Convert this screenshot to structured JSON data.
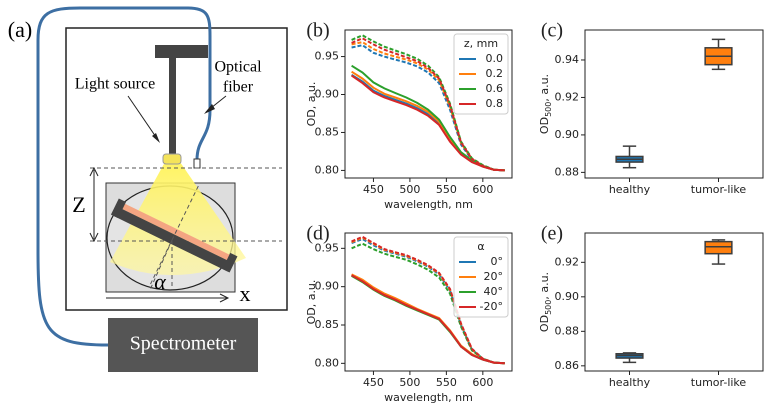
{
  "diagram": {
    "label": "(a)",
    "light_source": "Light source",
    "optical_fiber": [
      "Optical",
      "fiber"
    ],
    "z": "Z",
    "alpha": "α",
    "x": "x",
    "spectrometer": "Spectrometer"
  },
  "chart_data": [
    {
      "type": "line",
      "label": "(b)",
      "xlabel": "wavelength, nm",
      "ylabel": "OD, a.u.",
      "legend_title": "z, mm",
      "legend": "upper right",
      "x": [
        420,
        435,
        450,
        465,
        480,
        495,
        510,
        525,
        540,
        555,
        570,
        585,
        600,
        615,
        630
      ],
      "xlim": [
        411,
        640
      ],
      "xticks": [
        450,
        500,
        550,
        600
      ],
      "ylim": [
        0.79,
        0.985
      ],
      "yticks": [
        {
          "value": 0.8,
          "label": "0.80"
        },
        {
          "value": 0.85,
          "label": "0.85"
        },
        {
          "value": 0.9,
          "label": "0.90"
        },
        {
          "value": 0.95,
          "label": "0.95"
        }
      ],
      "series": [
        {
          "name": "0.0",
          "color": "#1f77b4",
          "values": [
            0.926,
            0.917,
            0.905,
            0.898,
            0.893,
            0.888,
            0.882,
            0.874,
            0.862,
            0.84,
            0.822,
            0.812,
            0.805,
            0.801,
            0.8
          ],
          "dashed_values": [
            0.962,
            0.965,
            0.955,
            0.95,
            0.946,
            0.942,
            0.937,
            0.929,
            0.915,
            0.88,
            0.834,
            0.814,
            0.806,
            0.801,
            0.8
          ]
        },
        {
          "name": "0.2",
          "color": "#ff7f0e",
          "values": [
            0.93,
            0.921,
            0.909,
            0.901,
            0.896,
            0.891,
            0.885,
            0.877,
            0.864,
            0.842,
            0.823,
            0.812,
            0.805,
            0.801,
            0.8
          ],
          "dashed_values": [
            0.966,
            0.969,
            0.96,
            0.954,
            0.95,
            0.946,
            0.941,
            0.933,
            0.919,
            0.884,
            0.836,
            0.815,
            0.806,
            0.801,
            0.8
          ]
        },
        {
          "name": "0.6",
          "color": "#2ca02c",
          "values": [
            0.938,
            0.929,
            0.916,
            0.908,
            0.902,
            0.896,
            0.889,
            0.88,
            0.867,
            0.844,
            0.824,
            0.813,
            0.806,
            0.801,
            0.8
          ],
          "dashed_values": [
            0.972,
            0.978,
            0.97,
            0.963,
            0.958,
            0.953,
            0.947,
            0.938,
            0.923,
            0.888,
            0.838,
            0.816,
            0.807,
            0.801,
            0.8
          ]
        },
        {
          "name": "0.8",
          "color": "#d62728",
          "values": [
            0.925,
            0.915,
            0.903,
            0.896,
            0.891,
            0.886,
            0.88,
            0.872,
            0.86,
            0.838,
            0.821,
            0.811,
            0.805,
            0.801,
            0.8
          ],
          "dashed_values": [
            0.968,
            0.974,
            0.966,
            0.959,
            0.954,
            0.949,
            0.944,
            0.935,
            0.921,
            0.886,
            0.837,
            0.815,
            0.806,
            0.801,
            0.8
          ]
        }
      ]
    },
    {
      "type": "box",
      "label": "(c)",
      "ylabel": [
        "OD",
        "500",
        ", a.u."
      ],
      "categories": [
        "healthy",
        "tumor-like"
      ],
      "colors": [
        "#1f77b4",
        "#ff7f0e"
      ],
      "ylim": [
        0.877,
        0.956
      ],
      "yticks": [
        {
          "value": 0.88,
          "label": "0.88"
        },
        {
          "value": 0.9,
          "label": "0.90"
        },
        {
          "value": 0.92,
          "label": "0.92"
        },
        {
          "value": 0.94,
          "label": "0.94"
        }
      ],
      "boxes": [
        {
          "low": 0.8825,
          "q1": 0.8855,
          "median": 0.887,
          "q3": 0.8885,
          "high": 0.894
        },
        {
          "low": 0.935,
          "q1": 0.9375,
          "median": 0.942,
          "q3": 0.9465,
          "high": 0.951
        }
      ]
    },
    {
      "type": "line",
      "label": "(d)",
      "xlabel": "wavelength, nm",
      "ylabel": "OD, a.u.",
      "legend_title": "α",
      "legend": "upper right",
      "x": [
        420,
        435,
        450,
        465,
        480,
        495,
        510,
        525,
        540,
        555,
        570,
        585,
        600,
        615,
        630
      ],
      "xlim": [
        411,
        640
      ],
      "xticks": [
        450,
        500,
        550,
        600
      ],
      "ylim": [
        0.79,
        0.97
      ],
      "yticks": [
        {
          "value": 0.8,
          "label": "0.80"
        },
        {
          "value": 0.85,
          "label": "0.85"
        },
        {
          "value": 0.9,
          "label": "0.90"
        },
        {
          "value": 0.95,
          "label": "0.95"
        }
      ],
      "series": [
        {
          "name": "0°",
          "color": "#1f77b4",
          "values": [
            0.915,
            0.908,
            0.898,
            0.89,
            0.884,
            0.877,
            0.87,
            0.864,
            0.858,
            0.842,
            0.822,
            0.811,
            0.805,
            0.801,
            0.8
          ],
          "dashed_values": [
            0.957,
            0.962,
            0.954,
            0.947,
            0.943,
            0.939,
            0.933,
            0.926,
            0.916,
            0.895,
            0.85,
            0.818,
            0.806,
            0.801,
            0.8
          ]
        },
        {
          "name": "20°",
          "color": "#ff7f0e",
          "values": [
            0.916,
            0.909,
            0.899,
            0.891,
            0.885,
            0.878,
            0.871,
            0.865,
            0.859,
            0.843,
            0.823,
            0.812,
            0.805,
            0.801,
            0.8
          ],
          "dashed_values": [
            0.958,
            0.964,
            0.956,
            0.948,
            0.944,
            0.94,
            0.934,
            0.927,
            0.917,
            0.896,
            0.851,
            0.818,
            0.806,
            0.801,
            0.8
          ]
        },
        {
          "name": "40°",
          "color": "#2ca02c",
          "values": [
            0.914,
            0.906,
            0.896,
            0.888,
            0.882,
            0.875,
            0.869,
            0.863,
            0.857,
            0.841,
            0.822,
            0.811,
            0.805,
            0.801,
            0.8
          ],
          "dashed_values": [
            0.95,
            0.956,
            0.949,
            0.943,
            0.939,
            0.935,
            0.929,
            0.922,
            0.912,
            0.891,
            0.848,
            0.817,
            0.806,
            0.801,
            0.8
          ]
        },
        {
          "name": "-20°",
          "color": "#d62728",
          "values": [
            0.915,
            0.907,
            0.897,
            0.889,
            0.883,
            0.876,
            0.87,
            0.864,
            0.858,
            0.842,
            0.822,
            0.811,
            0.805,
            0.801,
            0.8
          ],
          "dashed_values": [
            0.959,
            0.965,
            0.957,
            0.949,
            0.945,
            0.941,
            0.935,
            0.928,
            0.918,
            0.897,
            0.852,
            0.819,
            0.806,
            0.801,
            0.8
          ]
        }
      ]
    },
    {
      "type": "box",
      "label": "(e)",
      "ylabel": [
        "OD",
        "500",
        ", a.u."
      ],
      "categories": [
        "healthy",
        "tumor-like"
      ],
      "colors": [
        "#1f77b4",
        "#ff7f0e"
      ],
      "ylim": [
        0.857,
        0.937
      ],
      "yticks": [
        {
          "value": 0.86,
          "label": "0.86"
        },
        {
          "value": 0.88,
          "label": "0.88"
        },
        {
          "value": 0.9,
          "label": "0.90"
        },
        {
          "value": 0.92,
          "label": "0.92"
        }
      ],
      "boxes": [
        {
          "low": 0.862,
          "q1": 0.8645,
          "median": 0.866,
          "q3": 0.867,
          "high": 0.8675
        },
        {
          "low": 0.919,
          "q1": 0.925,
          "median": 0.929,
          "q3": 0.932,
          "high": 0.933
        }
      ]
    }
  ]
}
